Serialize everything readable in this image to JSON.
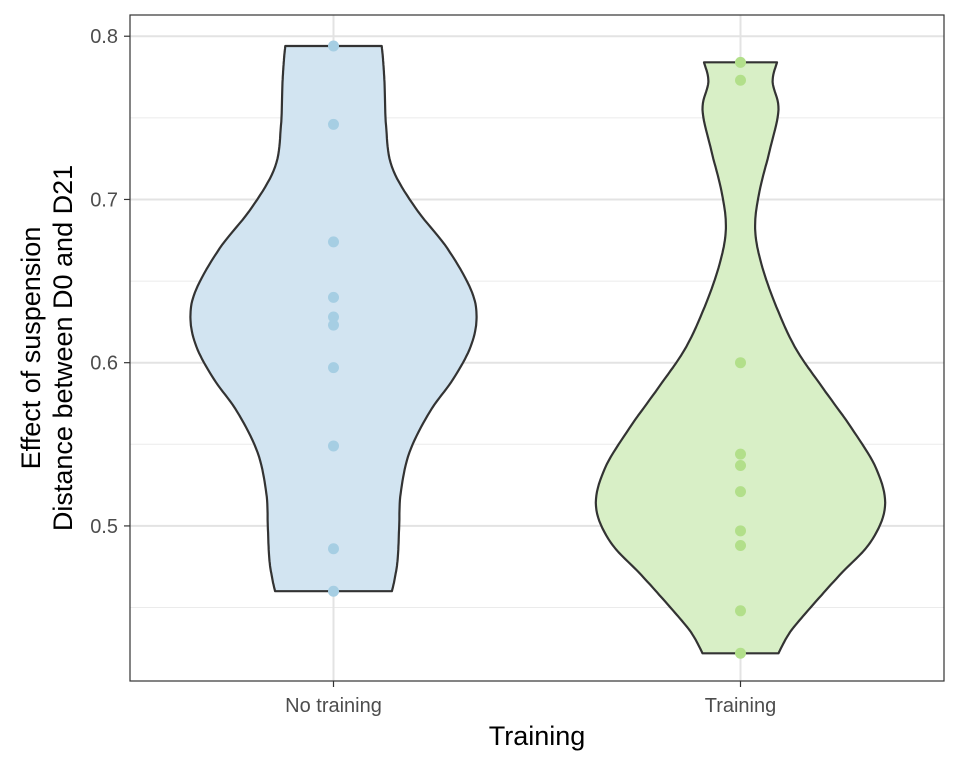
{
  "chart_data": {
    "type": "violin",
    "title": "",
    "xlabel": "Training",
    "ylabel_lines": [
      "Effect of suspension",
      "Distance between D0 and D21"
    ],
    "ylim": [
      0.405,
      0.813
    ],
    "y_ticks": [
      0.5,
      0.6,
      0.7,
      0.8
    ],
    "y_tick_labels": [
      "0.5",
      "0.6",
      "0.7",
      "0.8"
    ],
    "grid": true,
    "legend": "none",
    "categories": [
      "No training",
      "Training"
    ],
    "series": [
      {
        "category": "No training",
        "fill_color": "#d2e4f1",
        "point_color": "#a6cee3",
        "points": [
          0.794,
          0.746,
          0.674,
          0.64,
          0.628,
          0.623,
          0.597,
          0.549,
          0.486,
          0.46
        ],
        "violin_profile": [
          [
            0.46,
            0.4
          ],
          [
            0.468,
            0.42
          ],
          [
            0.48,
            0.44
          ],
          [
            0.5,
            0.45
          ],
          [
            0.52,
            0.46
          ],
          [
            0.545,
            0.52
          ],
          [
            0.57,
            0.66
          ],
          [
            0.59,
            0.82
          ],
          [
            0.61,
            0.94
          ],
          [
            0.628,
            0.98
          ],
          [
            0.645,
            0.94
          ],
          [
            0.67,
            0.78
          ],
          [
            0.695,
            0.56
          ],
          [
            0.72,
            0.4
          ],
          [
            0.745,
            0.36
          ],
          [
            0.77,
            0.35
          ],
          [
            0.785,
            0.34
          ],
          [
            0.794,
            0.33
          ]
        ]
      },
      {
        "category": "Training",
        "fill_color": "#d8efc6",
        "point_color": "#b2df8a",
        "points": [
          0.784,
          0.773,
          0.6,
          0.544,
          0.537,
          0.521,
          0.497,
          0.488,
          0.448,
          0.422
        ],
        "violin_profile": [
          [
            0.422,
            0.26
          ],
          [
            0.435,
            0.34
          ],
          [
            0.45,
            0.48
          ],
          [
            0.47,
            0.68
          ],
          [
            0.49,
            0.89
          ],
          [
            0.512,
            0.99
          ],
          [
            0.535,
            0.93
          ],
          [
            0.56,
            0.76
          ],
          [
            0.585,
            0.56
          ],
          [
            0.61,
            0.37
          ],
          [
            0.64,
            0.22
          ],
          [
            0.665,
            0.13
          ],
          [
            0.684,
            0.1
          ],
          [
            0.705,
            0.13
          ],
          [
            0.73,
            0.2
          ],
          [
            0.755,
            0.26
          ],
          [
            0.772,
            0.22
          ],
          [
            0.784,
            0.25
          ]
        ]
      }
    ]
  }
}
